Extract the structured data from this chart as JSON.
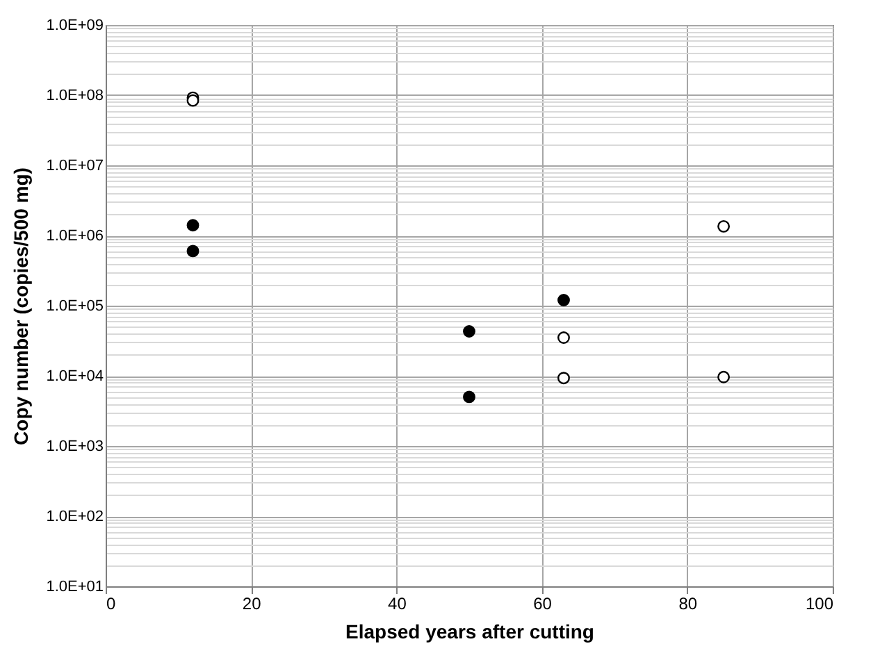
{
  "chart_data": {
    "type": "scatter",
    "xlabel": "Elapsed years after cutting",
    "ylabel": "Copy number (copies/500 mg)",
    "series": [
      {
        "color": "#000000",
        "x": [
          12,
          12,
          50,
          50,
          63
        ],
        "values": [
          1400000,
          600000,
          43000,
          5000,
          120000
        ]
      },
      {
        "color": "#ffffff",
        "x": [
          12,
          12,
          63,
          63,
          85,
          85
        ],
        "values": [
          92000000,
          84000000,
          35000,
          9300,
          1350000,
          9600
        ]
      }
    ],
    "marker": "circle",
    "log": "y",
    "grid": true,
    "xlim": [
      0,
      100
    ],
    "xticks": [
      0,
      20,
      40,
      60,
      80,
      100
    ],
    "ylim": [
      10,
      1000000000
    ],
    "yticks": [
      {
        "value": 10,
        "label": "1.0E+01"
      },
      {
        "value": 20,
        "label": null
      },
      {
        "value": 30,
        "label": null
      },
      {
        "value": 40,
        "label": null
      },
      {
        "value": 50,
        "label": null
      },
      {
        "value": 60,
        "label": null
      },
      {
        "value": 70,
        "label": null
      },
      {
        "value": 80,
        "label": null
      },
      {
        "value": 90,
        "label": null
      },
      {
        "value": 100,
        "label": "1.0E+02"
      },
      {
        "value": 200,
        "label": null
      },
      {
        "value": 300,
        "label": null
      },
      {
        "value": 400,
        "label": null
      },
      {
        "value": 500,
        "label": null
      },
      {
        "value": 600,
        "label": null
      },
      {
        "value": 700,
        "label": null
      },
      {
        "value": 800,
        "label": null
      },
      {
        "value": 900,
        "label": null
      },
      {
        "value": 1000,
        "label": "1.0E+03"
      },
      {
        "value": 2000,
        "label": null
      },
      {
        "value": 3000,
        "label": null
      },
      {
        "value": 4000,
        "label": null
      },
      {
        "value": 5000,
        "label": null
      },
      {
        "value": 6000,
        "label": null
      },
      {
        "value": 7000,
        "label": null
      },
      {
        "value": 8000,
        "label": null
      },
      {
        "value": 9000,
        "label": null
      },
      {
        "value": 10000,
        "label": "1.0E+04"
      },
      {
        "value": 20000,
        "label": null
      },
      {
        "value": 30000,
        "label": null
      },
      {
        "value": 40000,
        "label": null
      },
      {
        "value": 50000,
        "label": null
      },
      {
        "value": 60000,
        "label": null
      },
      {
        "value": 70000,
        "label": null
      },
      {
        "value": 80000,
        "label": null
      },
      {
        "value": 90000,
        "label": null
      },
      {
        "value": 100000,
        "label": "1.0E+05"
      },
      {
        "value": 200000,
        "label": null
      },
      {
        "value": 300000,
        "label": null
      },
      {
        "value": 400000,
        "label": null
      },
      {
        "value": 500000,
        "label": null
      },
      {
        "value": 600000,
        "label": null
      },
      {
        "value": 700000,
        "label": null
      },
      {
        "value": 800000,
        "label": null
      },
      {
        "value": 900000,
        "label": null
      },
      {
        "value": 1000000,
        "label": "1.0E+06"
      },
      {
        "value": 2000000,
        "label": null
      },
      {
        "value": 3000000,
        "label": null
      },
      {
        "value": 4000000,
        "label": null
      },
      {
        "value": 5000000,
        "label": null
      },
      {
        "value": 6000000,
        "label": null
      },
      {
        "value": 7000000,
        "label": null
      },
      {
        "value": 8000000,
        "label": null
      },
      {
        "value": 9000000,
        "label": null
      },
      {
        "value": 10000000,
        "label": "1.0E+07"
      },
      {
        "value": 20000000,
        "label": null
      },
      {
        "value": 30000000,
        "label": null
      },
      {
        "value": 40000000,
        "label": null
      },
      {
        "value": 50000000,
        "label": null
      },
      {
        "value": 60000000,
        "label": null
      },
      {
        "value": 70000000,
        "label": null
      },
      {
        "value": 80000000,
        "label": null
      },
      {
        "value": 90000000,
        "label": null
      },
      {
        "value": 100000000,
        "label": "1.0E+08"
      },
      {
        "value": 200000000,
        "label": null
      },
      {
        "value": 300000000,
        "label": null
      },
      {
        "value": 400000000,
        "label": null
      },
      {
        "value": 500000000,
        "label": null
      },
      {
        "value": 600000000,
        "label": null
      },
      {
        "value": 700000000,
        "label": null
      },
      {
        "value": 800000000,
        "label": null
      },
      {
        "value": 900000000,
        "label": null
      },
      {
        "value": 1000000000,
        "label": "1.0E+09"
      }
    ]
  }
}
